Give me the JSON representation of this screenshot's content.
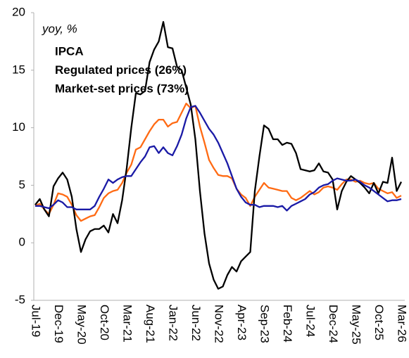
{
  "chart_data": {
    "type": "line",
    "subtitle": "yoy, %",
    "categories": [
      "Jul-19",
      null,
      null,
      null,
      null,
      "Dec-19",
      null,
      null,
      null,
      null,
      "May-20",
      null,
      null,
      null,
      null,
      "Oct-20",
      null,
      null,
      null,
      null,
      "Mar-21",
      null,
      null,
      null,
      null,
      "Aug-21",
      null,
      null,
      null,
      null,
      "Jan-22",
      null,
      null,
      null,
      null,
      "Jun-22",
      null,
      null,
      null,
      null,
      "Nov-22",
      null,
      null,
      null,
      null,
      "Apr-23",
      null,
      null,
      null,
      null,
      "Sep-23",
      null,
      null,
      null,
      null,
      "Feb-24",
      null,
      null,
      null,
      null,
      "Jul-24",
      null,
      null,
      null,
      null,
      "Dec-24",
      null,
      null,
      null,
      null,
      "May-25",
      null,
      null,
      null,
      null,
      "Oct-25",
      null,
      null,
      null,
      null,
      "Mar-26"
    ],
    "series": [
      {
        "name": "IPCA",
        "color": "#ff6a13",
        "values": [
          3.2,
          3.4,
          2.9,
          2.5,
          3.3,
          4.3,
          4.2,
          4.0,
          3.3,
          2.4,
          1.9,
          2.1,
          2.3,
          2.4,
          3.1,
          3.9,
          4.3,
          4.5,
          4.6,
          5.2,
          6.1,
          6.8,
          8.1,
          8.3,
          9.0,
          9.7,
          10.3,
          10.7,
          10.7,
          10.1,
          10.4,
          10.5,
          11.3,
          12.1,
          11.7,
          11.9,
          10.1,
          8.7,
          7.2,
          6.5,
          5.9,
          5.8,
          5.8,
          5.6,
          4.7,
          4.2,
          3.9,
          3.2,
          4.0,
          4.6,
          5.2,
          4.8,
          4.7,
          4.6,
          4.5,
          4.5,
          3.9,
          3.7,
          3.9,
          4.2,
          4.5,
          4.2,
          4.4,
          4.8,
          4.9,
          4.8,
          4.6,
          5.1,
          5.5,
          5.5,
          5.3,
          5.4,
          5.2,
          5.1,
          5.2,
          4.7,
          4.5,
          4.3,
          4.4,
          3.9,
          4.1
        ]
      },
      {
        "name": "Regulated prices (26%)",
        "color": "#000000",
        "values": [
          3.3,
          3.8,
          2.9,
          2.3,
          4.9,
          5.6,
          6.1,
          5.5,
          4.0,
          1.2,
          -0.8,
          0.3,
          1.0,
          1.2,
          1.2,
          1.5,
          0.9,
          2.5,
          1.7,
          3.7,
          6.5,
          10.0,
          13.0,
          12.9,
          13.2,
          15.7,
          16.8,
          17.5,
          19.2,
          17.0,
          16.9,
          15.3,
          15.0,
          13.5,
          12.0,
          9.0,
          4.5,
          0.8,
          -1.8,
          -3.2,
          -4.0,
          -3.8,
          -2.8,
          -2.1,
          -2.5,
          -1.6,
          -1.2,
          -0.8,
          4.5,
          7.5,
          10.2,
          9.9,
          9.0,
          9.0,
          8.5,
          8.7,
          8.6,
          7.8,
          6.4,
          6.3,
          6.2,
          6.3,
          6.9,
          6.2,
          6.1,
          5.5,
          2.9,
          4.5,
          5.3,
          5.8,
          5.5,
          5.2,
          4.8,
          4.3,
          5.2,
          4.3,
          5.3,
          5.2,
          7.4,
          4.5,
          5.3
        ]
      },
      {
        "name": "Market-set prices (73%)",
        "color": "#1a1aa6",
        "values": [
          3.2,
          3.2,
          3.1,
          3.0,
          3.3,
          3.7,
          3.5,
          3.1,
          3.1,
          2.9,
          2.9,
          2.9,
          2.9,
          3.2,
          4.0,
          4.7,
          5.5,
          5.2,
          5.5,
          5.7,
          5.8,
          5.8,
          6.4,
          7.0,
          7.5,
          8.3,
          8.4,
          7.8,
          8.3,
          7.8,
          7.6,
          8.4,
          9.4,
          10.8,
          11.8,
          11.9,
          11.3,
          10.6,
          9.9,
          9.4,
          8.7,
          7.8,
          6.9,
          5.8,
          4.7,
          4.0,
          3.5,
          3.3,
          3.3,
          3.1,
          3.2,
          3.2,
          3.2,
          3.1,
          3.2,
          2.8,
          3.2,
          3.4,
          3.6,
          3.8,
          4.2,
          4.4,
          4.8,
          5.0,
          5.1,
          5.4,
          5.6,
          5.5,
          5.4,
          5.4,
          5.5,
          5.3,
          5.0,
          4.8,
          4.5,
          4.2,
          3.9,
          3.6,
          3.7,
          3.7,
          3.8
        ]
      }
    ],
    "ylim": [
      -5,
      20
    ],
    "yticks": [
      -5,
      0,
      5,
      10,
      15,
      20
    ],
    "grid": false
  }
}
